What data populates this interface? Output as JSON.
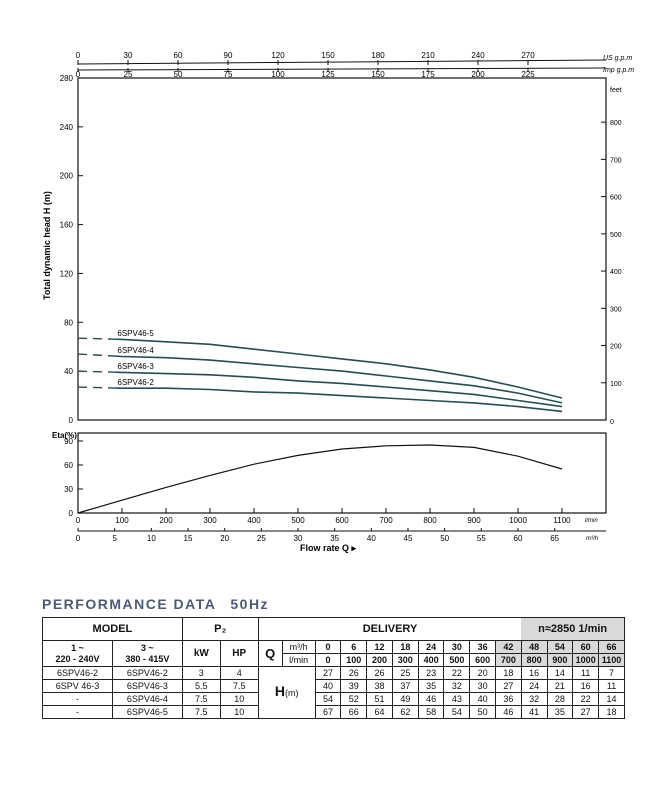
{
  "chart_data": [
    {
      "type": "line",
      "title": "",
      "ylabel": "Total dynamic head H (m)",
      "ylim": [
        0,
        280
      ],
      "yticks": [
        0,
        40,
        80,
        120,
        160,
        200,
        240,
        280
      ],
      "y_right_label": "feet",
      "y_right_ticks": [
        "100",
        "200",
        "300",
        "400",
        "500",
        "600",
        "700",
        "800"
      ],
      "y_right_zero": "0",
      "top_axis_usgpm": {
        "label": "US g.p.m",
        "ticks": [
          "0",
          "30",
          "60",
          "90",
          "120",
          "150",
          "180",
          "210",
          "240",
          "270"
        ]
      },
      "top_axis_impgpm": {
        "label": "Imp g.p.m",
        "ticks": [
          "0",
          "25",
          "50",
          "75",
          "100",
          "125",
          "150",
          "175",
          "200",
          "225"
        ]
      },
      "x_lmin_max": 1100,
      "series": [
        {
          "name": "6SPV46-5",
          "x": [
            0,
            100,
            200,
            300,
            400,
            500,
            600,
            700,
            800,
            900,
            1000,
            1100
          ],
          "values": [
            67,
            66,
            64,
            62,
            58,
            54,
            50,
            46,
            41,
            35,
            27,
            18
          ]
        },
        {
          "name": "6SPV46-4",
          "x": [
            0,
            100,
            200,
            300,
            400,
            500,
            600,
            700,
            800,
            900,
            1000,
            1100
          ],
          "values": [
            54,
            52,
            51,
            49,
            46,
            43,
            40,
            36,
            32,
            28,
            22,
            14
          ]
        },
        {
          "name": "6SPV46-3",
          "x": [
            0,
            100,
            200,
            300,
            400,
            500,
            600,
            700,
            800,
            900,
            1000,
            1100
          ],
          "values": [
            40,
            39,
            38,
            37,
            35,
            32,
            30,
            27,
            24,
            21,
            16,
            11
          ]
        },
        {
          "name": "6SPV46-2",
          "x": [
            0,
            100,
            200,
            300,
            400,
            500,
            600,
            700,
            800,
            900,
            1000,
            1100
          ],
          "values": [
            27,
            26,
            26,
            25,
            23,
            22,
            20,
            18,
            16,
            14,
            11,
            7
          ]
        }
      ]
    },
    {
      "type": "line",
      "ylabel": "Eta(%)",
      "ylim": [
        0,
        100
      ],
      "yticks": [
        0,
        30,
        60,
        90
      ],
      "x_lmin": {
        "label": "l/min",
        "ticks": [
          "0",
          "100",
          "200",
          "300",
          "400",
          "500",
          "600",
          "700",
          "800",
          "900",
          "1000",
          "1100"
        ]
      },
      "x_m3h": {
        "label": "m³/h",
        "ticks": [
          "0",
          "5",
          "10",
          "15",
          "20",
          "25",
          "30",
          "35",
          "40",
          "45",
          "50",
          "55",
          "60",
          "65"
        ]
      },
      "xlabel": "Flow rate  Q  ▸",
      "series": [
        {
          "name": "",
          "x": [
            0,
            100,
            200,
            300,
            400,
            500,
            600,
            700,
            800,
            900,
            1000,
            1100
          ],
          "values": [
            0,
            16,
            32,
            47,
            61,
            72,
            80,
            84,
            85,
            82,
            71,
            55
          ]
        }
      ]
    }
  ],
  "performance": {
    "title": "PERFORMANCE DATA",
    "freq": "50Hz",
    "model_label": "MODEL",
    "p2_label": "P₂",
    "delivery_label": "DELIVERY",
    "speed_label": "n≈2850 1/min",
    "phase1_label": "1 ~",
    "phase1_voltage": "220 - 240V",
    "phase3_label": "3 ~",
    "phase3_voltage": "380 - 415V",
    "kw_label": "kW",
    "hp_label": "HP",
    "q_label": "Q",
    "m3h_label": "m³/h",
    "lmin_label": "l/min",
    "h_label": "H",
    "h_unit": "(m)",
    "q_m3h": [
      "0",
      "6",
      "12",
      "18",
      "24",
      "30",
      "36",
      "42",
      "48",
      "54",
      "60",
      "66"
    ],
    "q_lmin": [
      "0",
      "100",
      "200",
      "300",
      "400",
      "500",
      "600",
      "700",
      "800",
      "900",
      "1000",
      "1100"
    ],
    "rows": [
      {
        "m1": "6SPV46-2",
        "m3": "6SPV46-2",
        "kw": "3",
        "hp": "4",
        "h": [
          "27",
          "26",
          "26",
          "25",
          "23",
          "22",
          "20",
          "18",
          "16",
          "14",
          "11",
          "7"
        ]
      },
      {
        "m1": "6SPV 46-3",
        "m3": "6SPV46-3",
        "kw": "5.5",
        "hp": "7.5",
        "h": [
          "40",
          "39",
          "38",
          "37",
          "35",
          "32",
          "30",
          "27",
          "24",
          "21",
          "16",
          "11"
        ]
      },
      {
        "m1": "-",
        "m3": "6SPV46-4",
        "kw": "7.5",
        "hp": "10",
        "h": [
          "54",
          "52",
          "51",
          "49",
          "46",
          "43",
          "40",
          "36",
          "32",
          "28",
          "22",
          "14"
        ]
      },
      {
        "m1": "-",
        "m3": "6SPV46-5",
        "kw": "7.5",
        "hp": "10",
        "h": [
          "67",
          "66",
          "64",
          "62",
          "58",
          "54",
          "50",
          "46",
          "41",
          "35",
          "27",
          "18"
        ]
      }
    ]
  }
}
